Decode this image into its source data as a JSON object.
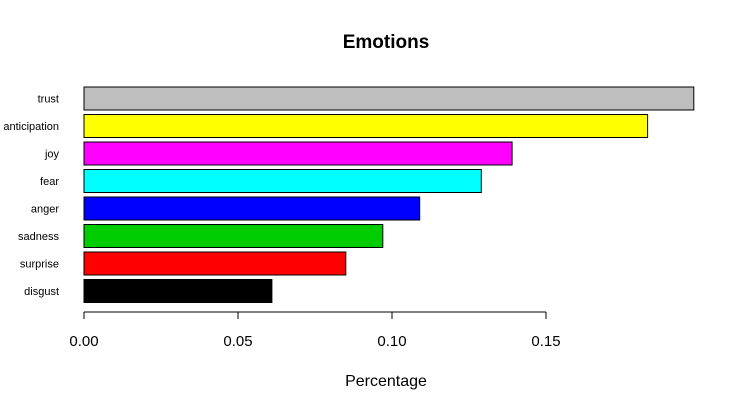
{
  "chart_data": {
    "type": "bar",
    "orientation": "horizontal",
    "title": "Emotions",
    "xlabel": "Percentage",
    "ylabel": "",
    "xlim": [
      0,
      0.2
    ],
    "xticks": [
      0.0,
      0.05,
      0.1,
      0.15
    ],
    "xtick_labels": [
      "0.00",
      "0.05",
      "0.10",
      "0.15"
    ],
    "grid": false,
    "legend": "none",
    "categories": [
      "trust",
      "anticipation",
      "joy",
      "fear",
      "anger",
      "sadness",
      "surprise",
      "disgust"
    ],
    "values": [
      0.198,
      0.183,
      0.139,
      0.129,
      0.109,
      0.097,
      0.085,
      0.061
    ],
    "colors": [
      "#bebebe",
      "#ffff00",
      "#ff00ff",
      "#00ffff",
      "#0000ff",
      "#00cd00",
      "#ff0000",
      "#000000"
    ]
  }
}
